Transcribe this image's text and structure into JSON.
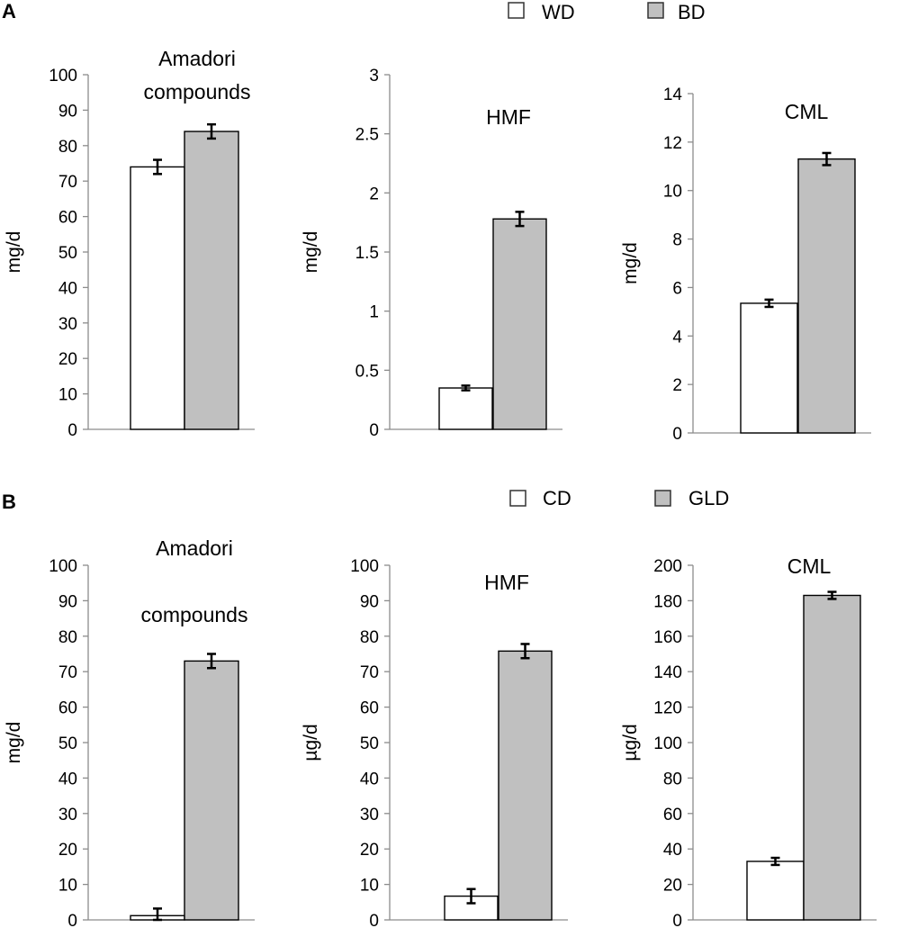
{
  "panels": [
    {
      "letter": "A",
      "legend": [
        {
          "label": "WD",
          "color": "#ffffff"
        },
        {
          "label": "BD",
          "color": "#c0c0c0"
        }
      ]
    },
    {
      "letter": "B",
      "legend": [
        {
          "label": "CD",
          "color": "#ffffff"
        },
        {
          "label": "GLD",
          "color": "#c0c0c0"
        }
      ]
    }
  ],
  "chart_data": [
    {
      "type": "bar",
      "panel": "A",
      "title": [
        "Amadori",
        "compounds"
      ],
      "ylabel": "mg/d",
      "ylim": [
        0,
        100
      ],
      "yticks": [
        0,
        10,
        20,
        30,
        40,
        50,
        60,
        70,
        80,
        90,
        100
      ],
      "tick_labels": [
        "0",
        "10",
        "20",
        "30",
        "40",
        "50",
        "60",
        "70",
        "80",
        "90",
        "100"
      ],
      "series": [
        {
          "name": "WD",
          "values": [
            74
          ],
          "error": [
            2
          ]
        },
        {
          "name": "BD",
          "values": [
            84
          ],
          "error": [
            2
          ]
        }
      ]
    },
    {
      "type": "bar",
      "panel": "A",
      "title": [
        "HMF"
      ],
      "ylabel": "mg/d",
      "ylim": [
        0,
        3
      ],
      "yticks": [
        0,
        0.5,
        1,
        1.5,
        2,
        2.5,
        3
      ],
      "tick_labels": [
        "0",
        "0.5",
        "1",
        "1.5",
        "2",
        "2.5",
        "3"
      ],
      "series": [
        {
          "name": "WD",
          "values": [
            0.35
          ],
          "error": [
            0.02
          ]
        },
        {
          "name": "BD",
          "values": [
            1.78
          ],
          "error": [
            0.06
          ]
        }
      ]
    },
    {
      "type": "bar",
      "panel": "A",
      "title": [
        "CML"
      ],
      "ylabel": "mg/d",
      "ylim": [
        0,
        14
      ],
      "yticks": [
        0,
        2,
        4,
        6,
        8,
        10,
        12,
        14
      ],
      "tick_labels": [
        "0",
        "2",
        "4",
        "6",
        "8",
        "10",
        "12",
        "14"
      ],
      "series": [
        {
          "name": "WD",
          "values": [
            5.35
          ],
          "error": [
            0.15
          ]
        },
        {
          "name": "BD",
          "values": [
            11.3
          ],
          "error": [
            0.25
          ]
        }
      ]
    },
    {
      "type": "bar",
      "panel": "B",
      "title": [
        "Amadori",
        "compounds"
      ],
      "ylabel": "mg/d",
      "ylim": [
        0,
        100
      ],
      "yticks": [
        0,
        10,
        20,
        30,
        40,
        50,
        60,
        70,
        80,
        90,
        100
      ],
      "tick_labels": [
        "0",
        "10",
        "20",
        "30",
        "40",
        "50",
        "60",
        "70",
        "80",
        "90",
        "100"
      ],
      "series": [
        {
          "name": "CD",
          "values": [
            1.2
          ],
          "error": [
            2
          ]
        },
        {
          "name": "GLD",
          "values": [
            73
          ],
          "error": [
            2
          ]
        }
      ]
    },
    {
      "type": "bar",
      "panel": "B",
      "title": [
        "HMF"
      ],
      "ylabel": "µg/d",
      "ylim": [
        0,
        100
      ],
      "yticks": [
        0,
        10,
        20,
        30,
        40,
        50,
        60,
        70,
        80,
        90,
        100
      ],
      "tick_labels": [
        "0",
        "10",
        "20",
        "30",
        "40",
        "50",
        "60",
        "70",
        "80",
        "90",
        "100"
      ],
      "series": [
        {
          "name": "CD",
          "values": [
            6.7
          ],
          "error": [
            2
          ]
        },
        {
          "name": "GLD",
          "values": [
            75.8
          ],
          "error": [
            2
          ]
        }
      ]
    },
    {
      "type": "bar",
      "panel": "B",
      "title": [
        "CML"
      ],
      "ylabel": "µg/d",
      "ylim": [
        0,
        200
      ],
      "yticks": [
        0,
        20,
        40,
        60,
        80,
        100,
        120,
        140,
        160,
        180,
        200
      ],
      "tick_labels": [
        "0",
        "20",
        "40",
        "60",
        "80",
        "100",
        "120",
        "140",
        "160",
        "180",
        "200"
      ],
      "series": [
        {
          "name": "CD",
          "values": [
            33
          ],
          "error": [
            2
          ]
        },
        {
          "name": "GLD",
          "values": [
            183
          ],
          "error": [
            2
          ]
        }
      ]
    }
  ]
}
